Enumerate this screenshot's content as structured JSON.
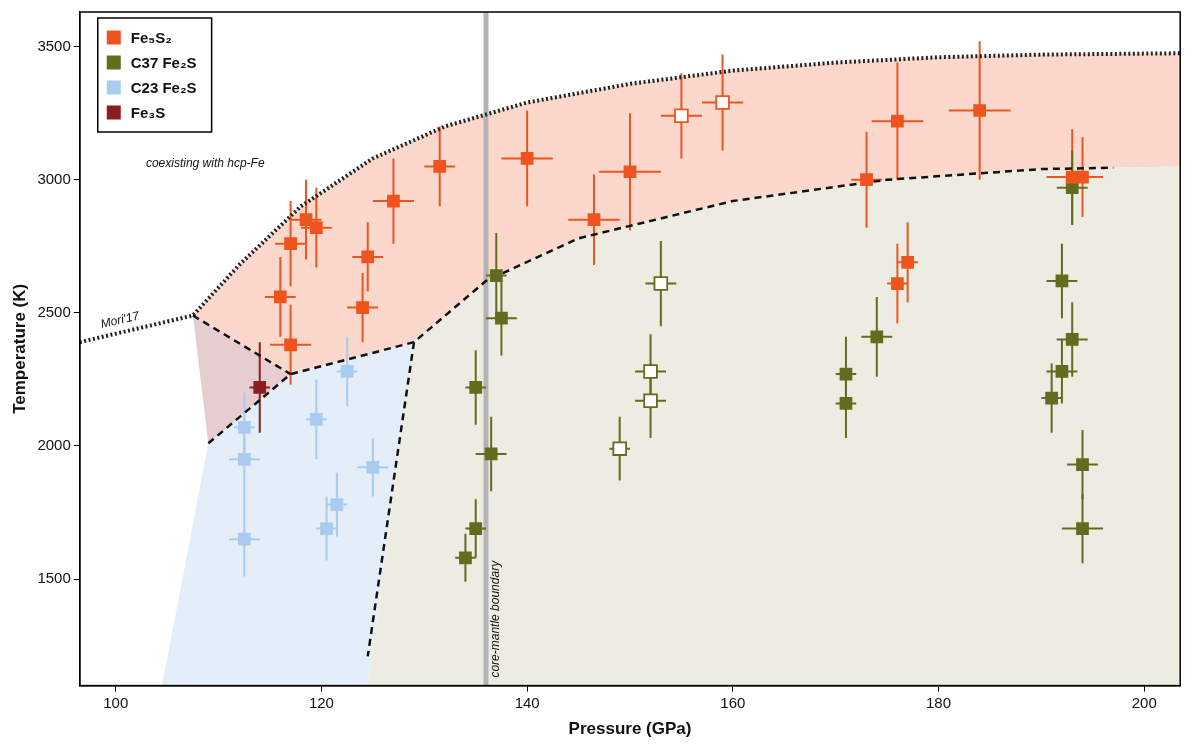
{
  "chart_data": {
    "type": "scatter",
    "x_label": "Pressure (GPa)",
    "y_label": "Temperature (K)",
    "xlim": [
      96.5,
      203.5
    ],
    "xticks": [
      100,
      120,
      140,
      160,
      180,
      200
    ],
    "ylim": [
      1100,
      3630
    ],
    "yticks": [
      1500,
      2000,
      2500,
      3000,
      3500
    ],
    "grid": false,
    "legend": "upper left",
    "series": [
      {
        "name": "Fe₅S₂",
        "color": "#f0541e",
        "marker": "square",
        "x": [
          116,
          117,
          117,
          118.5,
          119.5,
          124.5,
          124,
          127,
          131.5,
          140,
          146.5,
          150,
          173,
          176,
          176,
          177,
          184,
          193,
          194
        ],
        "y": [
          2560,
          2760,
          2380,
          2850,
          2820,
          2710,
          2520,
          2920,
          3050,
          3080,
          2850,
          3030,
          3000,
          3220,
          2610,
          2690,
          3260,
          3010,
          3010
        ],
        "xerr": [
          1.5,
          1.5,
          2,
          1.5,
          1.5,
          1.5,
          1.5,
          2,
          1.5,
          2.5,
          2.5,
          3,
          1.5,
          2.5,
          1,
          1,
          3,
          2.5,
          2
        ],
        "yerr": [
          150,
          160,
          150,
          150,
          150,
          130,
          130,
          160,
          150,
          180,
          170,
          220,
          180,
          220,
          150,
          150,
          260,
          180,
          150
        ]
      },
      {
        "name": "C37 Fe₂S",
        "color": "#636b1f",
        "marker": "square",
        "x": [
          134,
          135,
          135,
          136.5,
          137,
          137.5,
          171,
          171,
          174,
          191,
          192,
          192,
          193,
          193,
          194,
          194
        ],
        "y": [
          1580,
          1690,
          2220,
          1970,
          2640,
          2480,
          2270,
          2160,
          2410,
          2180,
          2280,
          2620,
          2400,
          2970,
          1930,
          1690
        ],
        "xerr": [
          1,
          1,
          1,
          1.5,
          1,
          1.5,
          1,
          1,
          1.5,
          1,
          1.5,
          1.5,
          1.5,
          1.5,
          1.5,
          2
        ],
        "yerr": [
          90,
          110,
          140,
          140,
          160,
          140,
          140,
          130,
          150,
          130,
          120,
          140,
          140,
          140,
          130,
          130
        ]
      },
      {
        "name": "C23 Fe₂S",
        "color": "#a9cbee",
        "marker": "square",
        "x": [
          112.5,
          112.5,
          112.5,
          119.5,
          120.5,
          121.5,
          122.5,
          125
        ],
        "y": [
          2070,
          1950,
          1650,
          2100,
          1690,
          1780,
          2280,
          1920
        ],
        "xerr": [
          1,
          1.5,
          1.5,
          1,
          1,
          1,
          1,
          1.5
        ],
        "yerr": [
          130,
          160,
          140,
          150,
          120,
          120,
          130,
          110
        ]
      },
      {
        "name": "Fe₃S",
        "color": "#8b1e1e",
        "marker": "square",
        "x": [
          114
        ],
        "y": [
          2220
        ],
        "xerr": [
          1
        ],
        "yerr": [
          170
        ]
      },
      {
        "name": "Fe₅S₂",
        "color": "#f0541e",
        "marker": "open_square",
        "x": [
          155,
          159
        ],
        "y": [
          3240,
          3290
        ],
        "xerr": [
          2,
          2
        ],
        "yerr": [
          160,
          180
        ]
      },
      {
        "name": "C37 Fe₂S",
        "color": "#636b1f",
        "marker": "open_square",
        "x": [
          149,
          152,
          152,
          153
        ],
        "y": [
          1990,
          2280,
          2170,
          2610
        ],
        "xerr": [
          1,
          1.5,
          1.5,
          1.5
        ],
        "yerr": [
          120,
          140,
          140,
          160
        ]
      }
    ],
    "regions": [
      {
        "color": "#fbd8cb",
        "x": [
          107.5,
          112,
          118,
          125,
          132,
          140,
          150,
          160,
          170,
          180,
          190,
          203.5,
          203.5,
          190,
          175,
          160,
          145,
          136,
          129,
          117
        ],
        "y": [
          2490,
          2680,
          2900,
          3080,
          3200,
          3290,
          3360,
          3410,
          3440,
          3460,
          3470,
          3475,
          3050,
          3040,
          3000,
          2920,
          2780,
          2620,
          2390,
          2270
        ]
      },
      {
        "color": "#e6cdd0",
        "x": [
          107.5,
          117,
          109
        ],
        "y": [
          2490,
          2270,
          2010
        ]
      },
      {
        "color": "#e3eef9",
        "x": [
          104.5,
          109,
          117,
          129,
          124.5
        ],
        "y": [
          1100,
          2010,
          2270,
          2390,
          1100
        ]
      },
      {
        "color": "#ecece2",
        "x": [
          124.5,
          129,
          136,
          145,
          160,
          175,
          190,
          203.5,
          203.5
        ],
        "y": [
          1100,
          2390,
          2620,
          2780,
          2920,
          3000,
          3040,
          3050,
          1100
        ]
      }
    ],
    "boundaries": [
      {
        "name": "Mori'17",
        "line_style": "dotted",
        "color": "#222222",
        "x": [
          96.5,
          107.5,
          112,
          118,
          125,
          132,
          140,
          150,
          160,
          170,
          180,
          190,
          203.5
        ],
        "y": [
          2390,
          2490,
          2680,
          2900,
          3080,
          3200,
          3290,
          3360,
          3410,
          3440,
          3460,
          3470,
          3475
        ]
      },
      {
        "line_style": "dashed",
        "color": "#111111",
        "x": [
          107.5,
          117
        ],
        "y": [
          2490,
          2270
        ]
      },
      {
        "line_style": "dashed",
        "color": "#111111",
        "x": [
          109,
          117,
          129,
          136,
          145,
          160,
          175,
          190,
          197
        ],
        "y": [
          2010,
          2270,
          2390,
          2620,
          2780,
          2920,
          3000,
          3040,
          3045
        ]
      },
      {
        "line_style": "dashed",
        "color": "#111111",
        "x": [
          129,
          124.5
        ],
        "y": [
          2390,
          1210
        ]
      }
    ],
    "core_mantle_boundary": {
      "x": 136,
      "label": "core-mantle boundary"
    },
    "annotations": [
      {
        "text": "coexisting with hcp-Fe",
        "x": 108.7,
        "y": 3060
      }
    ]
  }
}
